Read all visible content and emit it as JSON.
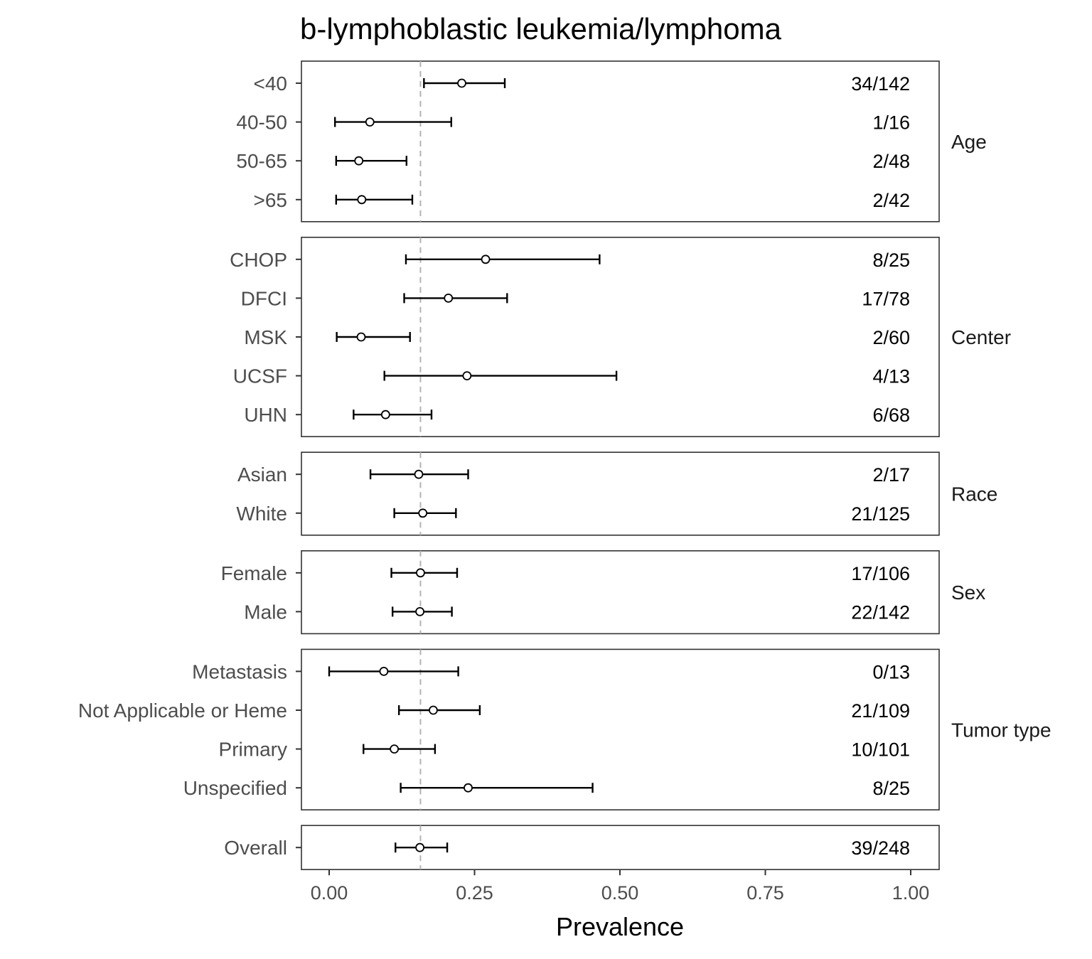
{
  "chart_data": {
    "type": "forest",
    "title": "b-lymphoblastic leukemia/lymphoma",
    "xlabel": "Prevalence",
    "xlim": [
      -0.05,
      1.05
    ],
    "xticks": [
      0,
      0.25,
      0.5,
      0.75,
      1
    ],
    "xtick_labels": [
      "0.00",
      "0.25",
      "0.50",
      "0.75",
      "1.00"
    ],
    "reference_line": 0.157,
    "grid": false,
    "colors": {
      "point_fill": "#ffffff",
      "point_stroke": "#000000",
      "errorbar": "#000000",
      "reference_line": "#b3b3b3",
      "panel_border": "#333333"
    },
    "groups": [
      {
        "name": "Age",
        "rows": [
          {
            "label": "<40",
            "estimate": 0.228,
            "lower": 0.163,
            "upper": 0.302,
            "count": "34/142"
          },
          {
            "label": "40-50",
            "estimate": 0.07,
            "lower": 0.01,
            "upper": 0.21,
            "count": "1/16"
          },
          {
            "label": "50-65",
            "estimate": 0.051,
            "lower": 0.012,
            "upper": 0.133,
            "count": "2/48"
          },
          {
            "label": ">65",
            "estimate": 0.056,
            "lower": 0.012,
            "upper": 0.143,
            "count": "2/42"
          }
        ]
      },
      {
        "name": "Center",
        "rows": [
          {
            "label": "CHOP",
            "estimate": 0.269,
            "lower": 0.132,
            "upper": 0.465,
            "count": "8/25"
          },
          {
            "label": "DFCI",
            "estimate": 0.205,
            "lower": 0.129,
            "upper": 0.306,
            "count": "17/78"
          },
          {
            "label": "MSK",
            "estimate": 0.055,
            "lower": 0.013,
            "upper": 0.139,
            "count": "2/60"
          },
          {
            "label": "UCSF",
            "estimate": 0.237,
            "lower": 0.095,
            "upper": 0.494,
            "count": "4/13"
          },
          {
            "label": "UHN",
            "estimate": 0.097,
            "lower": 0.042,
            "upper": 0.176,
            "count": "6/68"
          }
        ]
      },
      {
        "name": "Race",
        "rows": [
          {
            "label": "Asian",
            "estimate": 0.154,
            "lower": 0.071,
            "upper": 0.239,
            "count": "2/17"
          },
          {
            "label": "White",
            "estimate": 0.161,
            "lower": 0.112,
            "upper": 0.218,
            "count": "21/125"
          }
        ]
      },
      {
        "name": "Sex",
        "rows": [
          {
            "label": "Female",
            "estimate": 0.157,
            "lower": 0.107,
            "upper": 0.22,
            "count": "17/106"
          },
          {
            "label": "Male",
            "estimate": 0.156,
            "lower": 0.109,
            "upper": 0.211,
            "count": "22/142"
          }
        ]
      },
      {
        "name": "Tumor type",
        "rows": [
          {
            "label": "Metastasis",
            "estimate": 0.094,
            "lower": 0.0,
            "upper": 0.222,
            "count": "0/13"
          },
          {
            "label": "Not Applicable or Heme",
            "estimate": 0.179,
            "lower": 0.12,
            "upper": 0.259,
            "count": "21/109"
          },
          {
            "label": "Primary",
            "estimate": 0.112,
            "lower": 0.059,
            "upper": 0.182,
            "count": "10/101"
          },
          {
            "label": "Unspecified",
            "estimate": 0.239,
            "lower": 0.123,
            "upper": 0.453,
            "count": "8/25"
          }
        ]
      },
      {
        "name": "",
        "rows": [
          {
            "label": "Overall",
            "estimate": 0.156,
            "lower": 0.114,
            "upper": 0.203,
            "count": "39/248"
          }
        ]
      }
    ]
  }
}
